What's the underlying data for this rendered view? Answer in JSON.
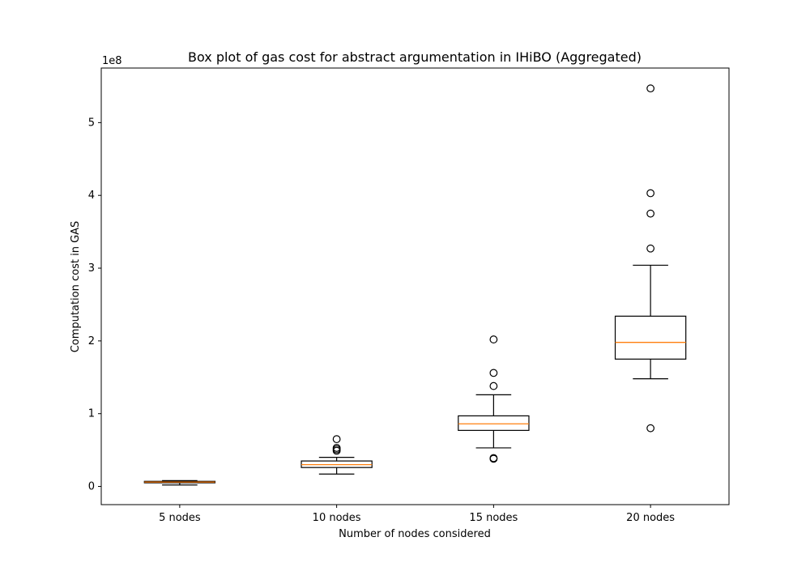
{
  "chart_data": {
    "type": "box",
    "title": "Box plot of gas cost for abstract argumentation in IHiBO (Aggregated)",
    "xlabel": "Number of nodes considered",
    "ylabel": "Computation cost in GAS",
    "y_multiplier_label": "1e8",
    "ylim": [
      -0.25,
      5.75
    ],
    "y_ticks": [
      0,
      1,
      2,
      3,
      4,
      5
    ],
    "y_tick_labels": [
      "0",
      "1",
      "2",
      "3",
      "4",
      "5"
    ],
    "grid": false,
    "categories": [
      "5 nodes",
      "10 nodes",
      "15 nodes",
      "20 nodes"
    ],
    "boxes": [
      {
        "whisker_low": 0.02,
        "q1": 0.05,
        "median": 0.06,
        "q3": 0.07,
        "whisker_high": 0.08,
        "outliers": []
      },
      {
        "whisker_low": 0.17,
        "q1": 0.26,
        "median": 0.3,
        "q3": 0.35,
        "whisker_high": 0.4,
        "outliers": [
          0.49,
          0.51,
          0.53,
          0.65
        ]
      },
      {
        "whisker_low": 0.53,
        "q1": 0.77,
        "median": 0.86,
        "q3": 0.97,
        "whisker_high": 1.26,
        "outliers": [
          0.38,
          0.39,
          1.38,
          1.56,
          2.02
        ]
      },
      {
        "whisker_low": 1.48,
        "q1": 1.75,
        "median": 1.98,
        "q3": 2.34,
        "whisker_high": 3.04,
        "outliers": [
          0.8,
          3.27,
          3.75,
          4.03,
          5.47
        ]
      }
    ],
    "colors": {
      "box": "#000000",
      "median": "#ff7f0e",
      "outlier": "#000000",
      "axes": "#000000"
    }
  }
}
